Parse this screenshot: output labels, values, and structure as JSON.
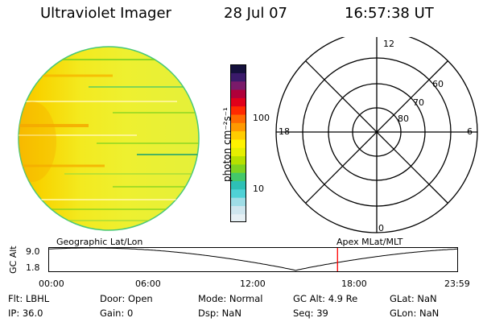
{
  "header": {
    "title": "Ultraviolet Imager",
    "date": "28 Jul 07",
    "time": "16:57:38 UT"
  },
  "colorbar": {
    "unit_label": "photon cm⁻²s⁻¹",
    "ticks": [
      "100",
      "10"
    ],
    "colors": [
      "#e6f0f4",
      "#cfe6ee",
      "#9fdde6",
      "#4fd1d6",
      "#2ec0b5",
      "#43c86a",
      "#7ed321",
      "#b6e000",
      "#e6ef00",
      "#fff200",
      "#ffcc00",
      "#ff9900",
      "#ff6a00",
      "#ff2a00",
      "#e0001a",
      "#b0003a",
      "#7a1a6a",
      "#3a1a6a",
      "#14103c"
    ]
  },
  "polar": {
    "mlt_labels": {
      "top": "12",
      "bottom": "0",
      "left": "18",
      "right": "6"
    },
    "lat_labels": [
      "60",
      "70",
      "80"
    ]
  },
  "timeline": {
    "ylabel": "GC Alt",
    "yticks": [
      "9.0",
      "1.8"
    ],
    "left_label": "Geographic Lat/Lon",
    "right_label": "Apex MLat/MLT",
    "xticks": [
      "00:00",
      "06:00",
      "12:00",
      "18:00",
      "23:59"
    ],
    "current_time_hours": 16.96,
    "marker_color": "#ff0000"
  },
  "info": {
    "filter": "Flt: LBHL",
    "ip": "IP: 36.0",
    "door": "Door: Open",
    "gain": "Gain:  0",
    "mode": "Mode: Normal",
    "dsp": "Dsp:    NaN",
    "gc_alt": "GC Alt: 4.9 Re",
    "seq": "Seq: 39",
    "glat": "GLat:    NaN",
    "glon": "GLon:    NaN"
  }
}
